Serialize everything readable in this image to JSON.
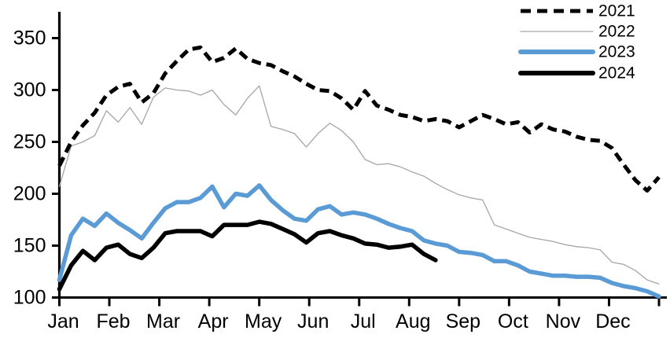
{
  "chart_data": {
    "type": "line",
    "title": "",
    "x_unit": "weekly points across one calendar year",
    "x_tick_labels": [
      "Jan",
      "Feb",
      "Mar",
      "Apr",
      "May",
      "Jun",
      "Jul",
      "Aug",
      "Sep",
      "Oct",
      "Nov",
      "Dec"
    ],
    "y_ticks": [
      100,
      150,
      200,
      250,
      300,
      350
    ],
    "y_range": [
      100,
      350
    ],
    "grid": false,
    "legend_position": "top-right",
    "colors": {
      "blue": "#5b9bd5",
      "gray": "#a6a6a6",
      "black": "#000000"
    },
    "series": [
      {
        "name": "2021",
        "color": "#000000",
        "style": "dashed",
        "width": 5,
        "values": [
          227,
          250,
          266,
          278,
          295,
          303,
          306,
          288,
          297,
          316,
          328,
          339,
          341,
          327,
          331,
          340,
          330,
          326,
          324,
          318,
          313,
          306,
          300,
          299,
          292,
          281,
          299,
          285,
          281,
          276,
          274,
          270,
          272,
          270,
          264,
          270,
          276,
          272,
          267,
          269,
          259,
          267,
          262,
          260,
          255,
          252,
          251,
          244,
          228,
          213,
          203,
          216
        ]
      },
      {
        "name": "2022",
        "color": "#a6a6a6",
        "style": "solid",
        "width": 1.3,
        "values": [
          207,
          246,
          250,
          256,
          280,
          269,
          283,
          267,
          293,
          302,
          300,
          299,
          295,
          300,
          286,
          276,
          292,
          304,
          265,
          262,
          258,
          245,
          258,
          268,
          261,
          250,
          233,
          228,
          229,
          226,
          221,
          217,
          210,
          204,
          199,
          196,
          194,
          170,
          166,
          162,
          158,
          156,
          154,
          151,
          149,
          148,
          146,
          134,
          132,
          126,
          117,
          113
        ]
      },
      {
        "name": "2023",
        "color": "#5b9bd5",
        "style": "solid",
        "width": 5.5,
        "values": [
          117,
          160,
          176,
          169,
          181,
          172,
          165,
          157,
          172,
          186,
          192,
          192,
          196,
          207,
          187,
          200,
          198,
          208,
          194,
          184,
          176,
          174,
          185,
          188,
          180,
          182,
          180,
          176,
          171,
          167,
          164,
          155,
          152,
          150,
          144,
          143,
          141,
          135,
          135,
          131,
          125,
          123,
          121,
          121,
          120,
          120,
          119,
          114,
          111,
          109,
          106,
          101
        ]
      },
      {
        "name": "2024",
        "color": "#000000",
        "style": "solid",
        "width": 5.5,
        "values": [
          108,
          131,
          145,
          136,
          148,
          151,
          142,
          138,
          148,
          162,
          164,
          164,
          164,
          159,
          170,
          170,
          170,
          173,
          171,
          166,
          161,
          153,
          162,
          164,
          160,
          157,
          152,
          151,
          148,
          149,
          151,
          142,
          136
        ]
      }
    ]
  }
}
